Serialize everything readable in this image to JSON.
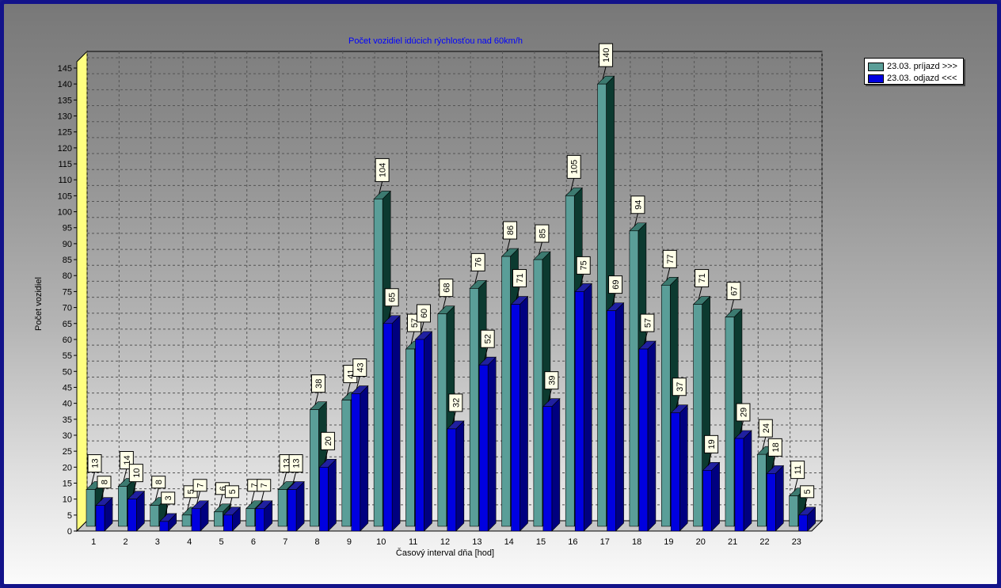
{
  "colors": {
    "series1_front": "#5a9e98",
    "series1_side": "#0c3a30",
    "series1_top": "#3c7a70",
    "series2_front": "#0000e0",
    "series2_side": "#000080",
    "series2_top": "#2020a0",
    "title": "#0000ff",
    "wall_left": "#ffff80"
  },
  "chart_data": {
    "type": "bar",
    "title": "Počet vozidiel idúcich rýchlosťou nad 60km/h",
    "xlabel": "Časový interval dňa [hod]",
    "ylabel": "Počet vozidiel",
    "ylim": [
      0,
      145
    ],
    "y_ticks": [
      0,
      5,
      10,
      15,
      20,
      25,
      30,
      35,
      40,
      45,
      50,
      55,
      60,
      65,
      70,
      75,
      80,
      85,
      90,
      95,
      100,
      105,
      110,
      115,
      120,
      125,
      130,
      135,
      140,
      145
    ],
    "categories": [
      "1",
      "2",
      "3",
      "4",
      "5",
      "6",
      "7",
      "8",
      "9",
      "10",
      "11",
      "12",
      "13",
      "14",
      "15",
      "16",
      "17",
      "18",
      "19",
      "20",
      "21",
      "22",
      "23"
    ],
    "series": [
      {
        "name": "23.03.  príjazd >>>",
        "values": [
          13,
          14,
          8,
          5,
          6,
          7,
          13,
          38,
          41,
          104,
          57,
          68,
          76,
          86,
          85,
          105,
          140,
          94,
          77,
          71,
          67,
          24,
          11
        ]
      },
      {
        "name": "23.03.  odjazd <<<",
        "values": [
          8,
          10,
          3,
          7,
          5,
          7,
          13,
          20,
          43,
          65,
          60,
          32,
          52,
          71,
          39,
          75,
          69,
          57,
          37,
          19,
          29,
          18,
          5
        ]
      }
    ],
    "grid": true,
    "legend_position": "top-right"
  }
}
